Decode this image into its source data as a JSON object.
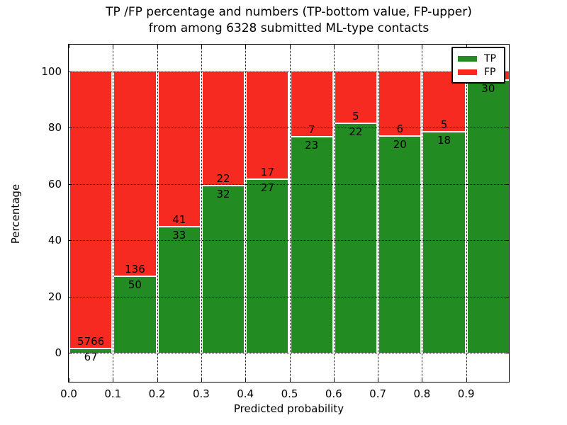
{
  "title": {
    "line1": "TP /FP percentage and numbers (TP-bottom value, FP-upper)",
    "line2": "from among 6328 submitted ML-type contacts"
  },
  "axes": {
    "xlabel": "Predicted probability",
    "ylabel": "Percentage",
    "xtick_labels": [
      "0.0",
      "0.1",
      "0.2",
      "0.3",
      "0.4",
      "0.5",
      "0.6",
      "0.7",
      "0.8",
      "0.9"
    ],
    "ytick_labels": [
      "0",
      "20",
      "40",
      "60",
      "80",
      "100"
    ]
  },
  "legend": {
    "items": [
      {
        "label": "TP",
        "color": "#228b22"
      },
      {
        "label": "FP",
        "color": "#f62a20"
      }
    ]
  },
  "colors": {
    "tp": "#228b22",
    "fp": "#f62a20",
    "bar_edge": "#ffffff",
    "grid": "#000000"
  },
  "chart_data": {
    "type": "bar",
    "stacked": true,
    "normalized": "percent",
    "title": "TP /FP percentage and numbers (TP-bottom value, FP-upper) from among 6328 submitted ML-type contacts",
    "xlabel": "Predicted probability",
    "ylabel": "Percentage",
    "total_contacts": 6328,
    "bin_edges": [
      0.0,
      0.1,
      0.2,
      0.3,
      0.4,
      0.5,
      0.6,
      0.7,
      0.8,
      0.9,
      1.0
    ],
    "categories": [
      "0.0-0.1",
      "0.1-0.2",
      "0.2-0.3",
      "0.3-0.4",
      "0.4-0.5",
      "0.5-0.6",
      "0.6-0.7",
      "0.7-0.8",
      "0.8-0.9",
      "0.9-1.0"
    ],
    "series": [
      {
        "name": "TP",
        "counts": [
          67,
          50,
          33,
          32,
          27,
          23,
          22,
          20,
          18,
          30
        ]
      },
      {
        "name": "FP",
        "counts": [
          5766,
          136,
          41,
          22,
          17,
          7,
          5,
          6,
          5,
          1
        ]
      }
    ],
    "tp_percent": [
      1.15,
      26.88,
      44.59,
      59.26,
      61.36,
      76.67,
      81.48,
      76.92,
      78.26,
      96.77
    ],
    "visible_bar_labels": {
      "tp": [
        "67",
        "50",
        "33",
        "32",
        "27",
        "23",
        "22",
        "20",
        "18",
        "30"
      ],
      "fp": [
        "5766",
        "136",
        "41",
        "22",
        "17",
        "7",
        "5",
        "6",
        "5",
        ""
      ]
    },
    "xlim": [
      0.0,
      1.0
    ],
    "ylim": [
      -11,
      110
    ],
    "yticks": [
      0,
      20,
      40,
      60,
      80,
      100
    ],
    "grid": true,
    "legend_position": "upper right"
  }
}
